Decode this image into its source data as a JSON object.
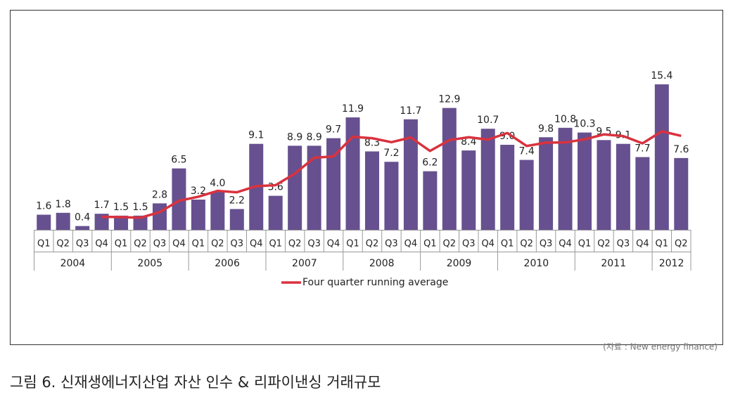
{
  "chart_data": {
    "type": "bar",
    "category_groups": [
      {
        "label": "2004",
        "categories": [
          "Q1",
          "Q2",
          "Q3",
          "Q4"
        ]
      },
      {
        "label": "2005",
        "categories": [
          "Q1",
          "Q2",
          "Q3",
          "Q4"
        ]
      },
      {
        "label": "2006",
        "categories": [
          "Q1",
          "Q2",
          "Q3",
          "Q4"
        ]
      },
      {
        "label": "2007",
        "categories": [
          "Q1",
          "Q2",
          "Q3",
          "Q4"
        ]
      },
      {
        "label": "2008",
        "categories": [
          "Q1",
          "Q2",
          "Q3",
          "Q4"
        ]
      },
      {
        "label": "2009",
        "categories": [
          "Q1",
          "Q2",
          "Q3",
          "Q4"
        ]
      },
      {
        "label": "2010",
        "categories": [
          "Q1",
          "Q2",
          "Q3",
          "Q4"
        ]
      },
      {
        "label": "2011",
        "categories": [
          "Q1",
          "Q2",
          "Q3",
          "Q4"
        ]
      },
      {
        "label": "2012",
        "categories": [
          "Q1",
          "Q2"
        ]
      }
    ],
    "ylim": [
      0,
      17
    ],
    "series": [
      {
        "type": "bar",
        "color": "#67508f",
        "values": [
          1.6,
          1.8,
          0.4,
          1.7,
          1.5,
          1.5,
          2.8,
          6.5,
          3.2,
          4.0,
          2.2,
          9.1,
          3.6,
          8.9,
          8.9,
          9.7,
          11.9,
          8.3,
          7.2,
          11.7,
          6.2,
          12.9,
          8.4,
          10.7,
          9.0,
          7.4,
          9.8,
          10.8,
          10.3,
          9.5,
          9.1,
          7.7,
          15.4,
          7.6
        ],
        "value_labels": [
          "1.6",
          "1.8",
          "0.4",
          "1.7",
          "1.5",
          "1.5",
          "2.8",
          "6.5",
          "3.2",
          "4.0",
          "2.2",
          "9.1",
          "3.6",
          "8.9",
          "8.9",
          "9.7",
          "11.9",
          "8.3",
          "7.2",
          "11.7",
          "6.2",
          "12.9",
          "8.4",
          "10.7",
          "9.0",
          "7.4",
          "9.8",
          "10.8",
          "10.3",
          "9.5",
          "9.1",
          "7.7",
          "15.4",
          "7.6"
        ]
      },
      {
        "type": "line",
        "name": "Four quarter running average",
        "color": "#d9323e",
        "values": [
          null,
          null,
          null,
          1.375,
          1.35,
          1.275,
          1.875,
          3.075,
          3.5,
          4.125,
          3.975,
          4.625,
          4.725,
          5.95,
          7.625,
          7.775,
          9.85,
          9.7,
          9.275,
          9.775,
          8.35,
          9.5,
          9.8,
          9.55,
          10.25,
          8.875,
          9.225,
          9.25,
          9.575,
          10.1,
          9.925,
          9.15,
          10.425,
          9.95
        ]
      }
    ],
    "legend": "bottom",
    "source": "(자료 : New energy finance)",
    "caption": "그림 6. 신재생에너지산업 자산 인수 & 리파이낸싱 거래규모"
  }
}
